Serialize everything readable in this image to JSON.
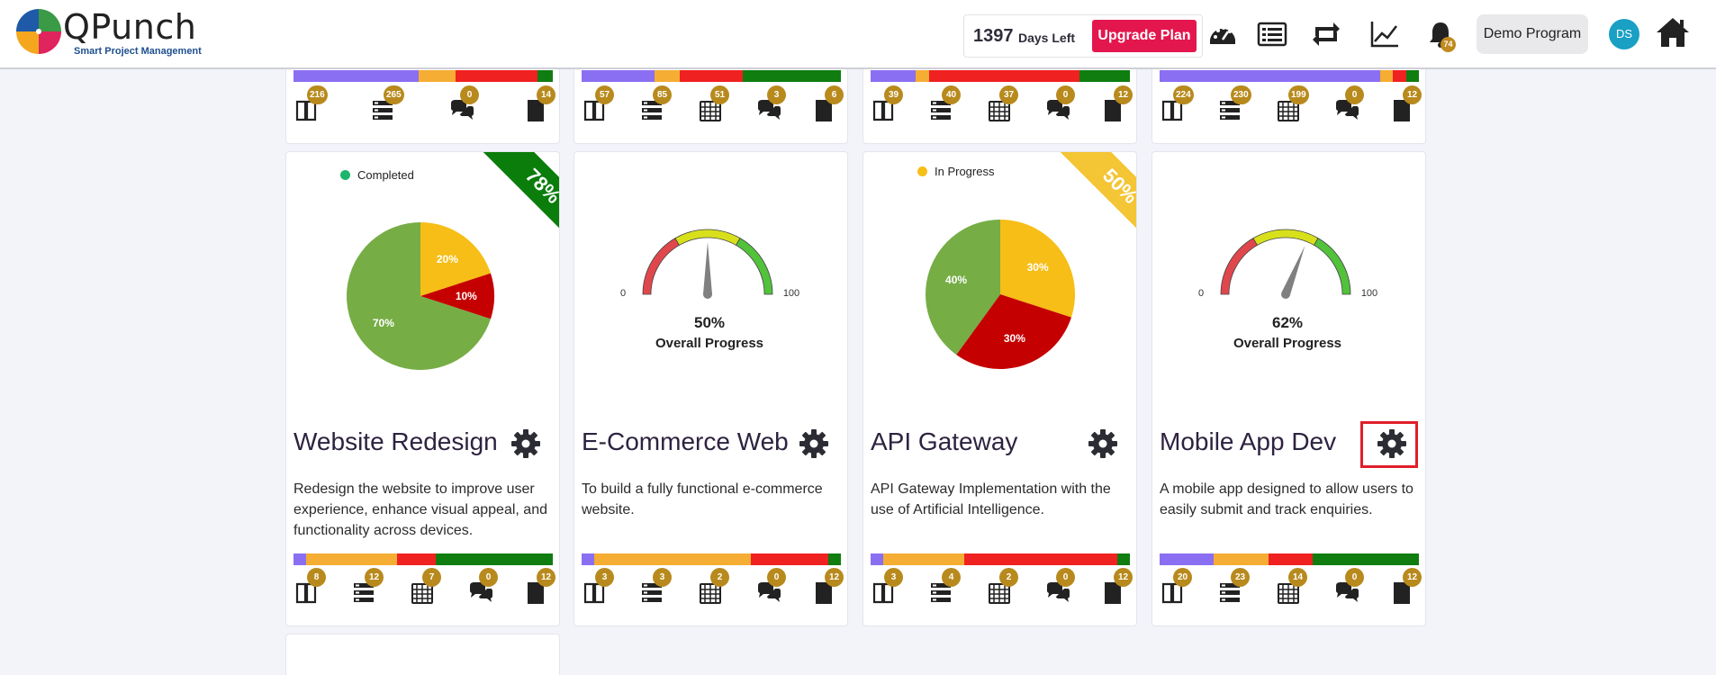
{
  "header": {
    "brand_name": "QPunch",
    "brand_tagline": "Smart Project Management",
    "days_left_count": "1397",
    "days_left_label": "Days Left",
    "upgrade_label": "Upgrade Plan",
    "notification_count": "74",
    "program_label": "Demo Program",
    "avatar_initials": "DS"
  },
  "top_cards": [
    {
      "bar": [
        40,
        12,
        26,
        5
      ],
      "stats": [
        "216",
        "265",
        "0",
        "14"
      ],
      "has_calendar": false
    },
    {
      "bar": [
        28,
        10,
        24,
        38
      ],
      "stats": [
        "57",
        "85",
        "51",
        "3",
        "6"
      ],
      "has_calendar": true
    },
    {
      "bar": [
        17,
        5,
        56,
        19
      ],
      "stats": [
        "39",
        "40",
        "37",
        "0",
        "12"
      ],
      "has_calendar": true
    },
    {
      "bar": [
        85,
        5,
        5,
        5
      ],
      "stats": [
        "224",
        "230",
        "199",
        "0",
        "12"
      ],
      "has_calendar": true
    }
  ],
  "projects": [
    {
      "title": "Website Redesign",
      "description": "Redesign the website to improve user experience, enhance visual appeal, and functionality across devices.",
      "visual": "pie",
      "legend": "Completed",
      "legend_color": "#1db56b",
      "ribbon": "78%",
      "ribbon_color": "#0a7d0a",
      "pie": [
        {
          "label": "20%",
          "value": 20,
          "color": "#f6be16"
        },
        {
          "label": "10%",
          "value": 10,
          "color": "#c40000"
        },
        {
          "label": "70%",
          "value": 70,
          "color": "#76ad45"
        }
      ],
      "bar": [
        5,
        35,
        15,
        45
      ],
      "stats": [
        "8",
        "12",
        "7",
        "0",
        "12"
      ]
    },
    {
      "title": "E-Commerce Web",
      "description": "To build a fully functional e-commerce website.",
      "visual": "gauge",
      "gauge_value": 50,
      "gauge_text": "50%",
      "gauge_caption": "Overall Progress",
      "gauge_min": "0",
      "gauge_max": "100",
      "bar": [
        5,
        63,
        31,
        5
      ],
      "stats": [
        "3",
        "3",
        "2",
        "0",
        "12"
      ]
    },
    {
      "title": "API Gateway",
      "description": "API Gateway Implementation with the use of Artificial Intelligence.",
      "visual": "pie",
      "legend": "In Progress",
      "legend_color": "#f6be16",
      "ribbon": "50%",
      "ribbon_color": "#f4c534",
      "pie": [
        {
          "label": "30%",
          "value": 30,
          "color": "#f6be16"
        },
        {
          "label": "30%",
          "value": 30,
          "color": "#c40000"
        },
        {
          "label": "40%",
          "value": 40,
          "color": "#76ad45"
        }
      ],
      "bar": [
        5,
        31,
        59,
        5
      ],
      "stats": [
        "3",
        "4",
        "2",
        "0",
        "12"
      ]
    },
    {
      "title": "Mobile App Dev",
      "description": "A mobile app designed to allow users to easily submit and track enquiries.",
      "visual": "gauge",
      "gauge_value": 62,
      "gauge_text": "62%",
      "gauge_caption": "Overall Progress",
      "gauge_min": "0",
      "gauge_max": "100",
      "bar": [
        21,
        21,
        17,
        41
      ],
      "stats": [
        "20",
        "23",
        "14",
        "0",
        "12"
      ]
    }
  ],
  "colors": {
    "bar_purple": "#8b6ff2",
    "bar_orange": "#f5ad33",
    "bar_red": "#f02121",
    "bar_green": "#0f7d0f",
    "gauge_red": "#e0474c",
    "gauge_yellow": "#d8e01c",
    "gauge_green": "#52c23b",
    "gear": "#2c2c34"
  }
}
